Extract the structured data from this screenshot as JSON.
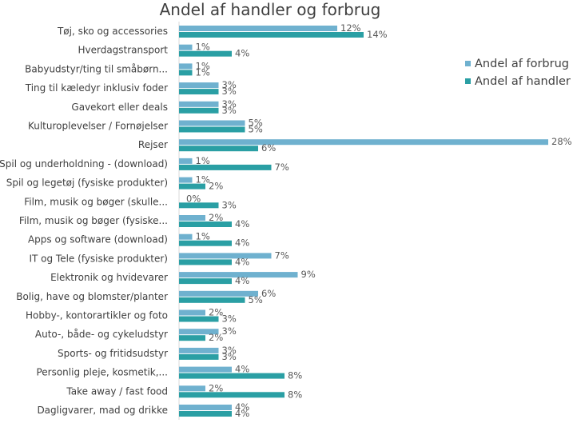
{
  "chart_data": {
    "type": "bar",
    "orientation": "horizontal",
    "title": "Andel af handler og forbrug",
    "categories": [
      "Tøj, sko og accessories",
      "Hverdagstransport",
      "Babyudstyr/ting til småbørn...",
      "Ting til kæledyr inklusiv foder",
      "Gavekort eller deals",
      "Kulturoplevelser / Fornøjelser",
      "Rejser",
      "Spil og underholdning - (download)",
      "Spil og legetøj (fysiske produkter)",
      "Film, musik og bøger (skulle...",
      "Film, musik og bøger (fysiske...",
      "Apps og software (download)",
      "IT og Tele (fysiske produkter)",
      "Elektronik og hvidevarer",
      "Bolig, have og blomster/planter",
      "Hobby-, kontorartikler og foto",
      "Auto-, både- og cykeludstyr",
      "Sports- og fritidsudstyr",
      "Personlig pleje, kosmetik,...",
      "Take away / fast food",
      "Dagligvarer, mad og drikke"
    ],
    "series": [
      {
        "name": "Andel af forbrug",
        "color": "#6fb1cf",
        "values": [
          12,
          1,
          1,
          3,
          3,
          5,
          28,
          1,
          1,
          0,
          2,
          1,
          7,
          9,
          6,
          2,
          3,
          3,
          4,
          2,
          4
        ],
        "labels": [
          "12%",
          "1%",
          "1%",
          "3%",
          "3%",
          "5%",
          "28%",
          "1%",
          "1%",
          "0%",
          "2%",
          "1%",
          "7%",
          "9%",
          "6%",
          "2%",
          "3%",
          "3%",
          "4%",
          "2%",
          "4%"
        ]
      },
      {
        "name": "Andel af handler",
        "color": "#2a9fa4",
        "values": [
          14,
          4,
          1,
          3,
          3,
          5,
          6,
          7,
          2,
          3,
          4,
          4,
          4,
          4,
          5,
          3,
          2,
          3,
          8,
          8,
          4
        ],
        "labels": [
          "14%",
          "4%",
          "1%",
          "3%",
          "3%",
          "5%",
          "6%",
          "7%",
          "2%",
          "3%",
          "4%",
          "4%",
          "4%",
          "4%",
          "5%",
          "3%",
          "2%",
          "3%",
          "8%",
          "8%",
          "4%"
        ]
      }
    ],
    "unit": "%",
    "xlim": [
      0,
      28
    ],
    "grid": false,
    "legend_position": "right"
  }
}
